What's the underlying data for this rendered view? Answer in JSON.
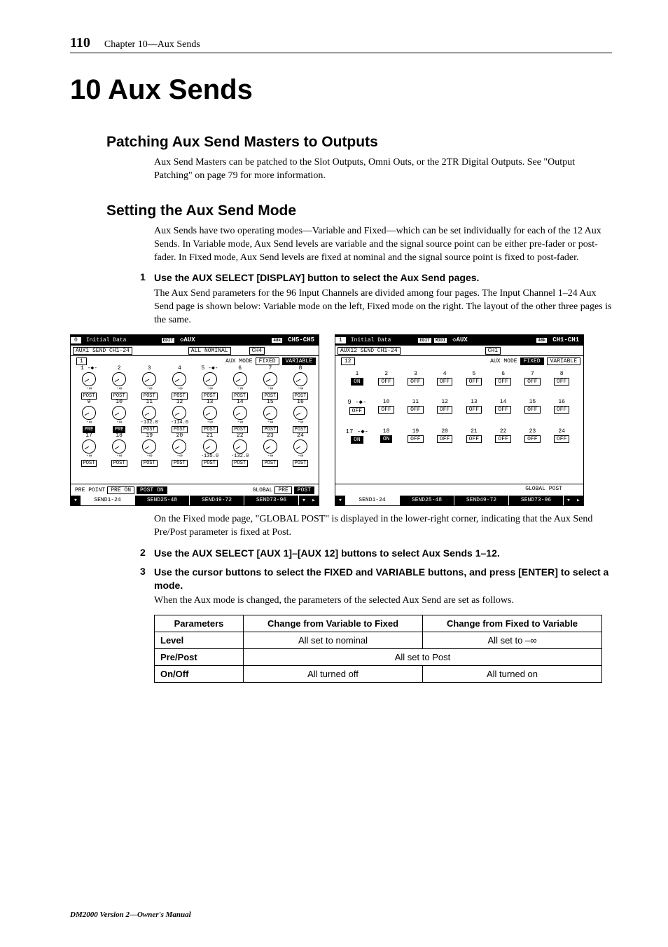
{
  "header": {
    "page_number": "110",
    "chapter_ref": "Chapter 10—Aux Sends"
  },
  "chapter_title": "10  Aux Sends",
  "section1": {
    "title": "Patching Aux Send Masters to Outputs",
    "body": "Aux Send Masters can be patched to the Slot Outputs, Omni Outs, or the 2TR Digital Outputs. See \"Output Patching\" on page 79 for more information."
  },
  "section2": {
    "title": "Setting the Aux Send Mode",
    "body": "Aux Sends have two operating modes—Variable and Fixed—which can be set individually for each of the 12 Aux Sends. In Variable mode, Aux Send levels are variable and the signal source point can be either pre-fader or post-fader. In Fixed mode, Aux Send levels are fixed at nominal and the signal source point is fixed to post-fader."
  },
  "step1": {
    "num": "1",
    "text": "Use the AUX SELECT [DISPLAY] button to select the Aux Send pages."
  },
  "step1_body": "The Aux Send parameters for the 96 Input Channels are divided among four pages. The Input Channel 1–24 Aux Send page is shown below: Variable mode on the left, Fixed mode on the right. The layout of the other three pages is the same.",
  "left_screen": {
    "tb_num": "0",
    "tb_id": "Initial Data",
    "tb_edit": "EDIT",
    "tb_aux": "◇AUX",
    "tb_48": "48k",
    "tb_ch": "CH5-CH5",
    "sub_aux": "AUX1 SEND CH1-24",
    "sub_all": "ALL NOMINAL",
    "sub_ch": "CH4",
    "mode_box": "1",
    "mode_label": "AUX MODE",
    "mode_fixed": "FIXED",
    "mode_var": "VARIABLE",
    "rows": [
      [
        {
          "n": "1",
          "v": "",
          "p": "POST",
          "arrow": "-◆-"
        },
        {
          "n": "2",
          "v": "",
          "p": "POST"
        },
        {
          "n": "3",
          "v": "",
          "p": "POST"
        },
        {
          "n": "4",
          "v": "",
          "p": "POST"
        },
        {
          "n": "5",
          "v": "",
          "p": "POST",
          "arrow": "-◆-"
        },
        {
          "n": "6",
          "v": "",
          "p": "POST"
        },
        {
          "n": "7",
          "v": "",
          "p": "POST"
        },
        {
          "n": "8",
          "v": "",
          "p": "POST"
        }
      ],
      [
        {
          "n": "9",
          "v": "-∞",
          "p": "PRE",
          "inv": true
        },
        {
          "n": "10",
          "v": "-∞",
          "p": "PRE",
          "inv": true
        },
        {
          "n": "11",
          "v": "-132.0",
          "p": "POST"
        },
        {
          "n": "12",
          "v": "-114.0",
          "p": "POST"
        },
        {
          "n": "13",
          "v": "-∞",
          "p": "POST"
        },
        {
          "n": "14",
          "v": "-∞",
          "p": "POST"
        },
        {
          "n": "15",
          "v": "-∞",
          "p": "POST"
        },
        {
          "n": "16",
          "v": "-∞",
          "p": "POST"
        }
      ],
      [
        {
          "n": "17",
          "v": "-∞",
          "p": "POST"
        },
        {
          "n": "18",
          "v": "-∞",
          "p": "POST"
        },
        {
          "n": "19",
          "v": "-∞",
          "p": "POST"
        },
        {
          "n": "20",
          "v": "-∞",
          "p": "POST"
        },
        {
          "n": "21",
          "v": "-135.0",
          "p": "POST"
        },
        {
          "n": "22",
          "v": "-132.0",
          "p": "POST"
        },
        {
          "n": "23",
          "v": "-∞",
          "p": "POST"
        },
        {
          "n": "24",
          "v": "-∞",
          "p": "POST"
        }
      ]
    ],
    "foot_l_label": "PRE POINT",
    "foot_l_preon": "PRE ON",
    "foot_l_poston": "POST ON",
    "foot_r_label": "GLOBAL",
    "foot_r_pre": "PRE",
    "foot_r_post": "POST",
    "tabs": [
      "SEND1-24",
      "SEND25-48",
      "SEND49-72",
      "SEND73-96"
    ]
  },
  "right_screen": {
    "tb_num": "1",
    "tb_id": "Initial Data",
    "tb_edit": "EDIT",
    "tb_midi": "MIDI",
    "tb_aux": "◇AUX",
    "tb_48": "48k",
    "tb_ch": "CH1-CH1",
    "sub_aux": "AUX12 SEND CH1-24",
    "sub_ch": "CH1",
    "mode_box": "12",
    "mode_label": "AUX MODE",
    "mode_fixed": "FIXED",
    "mode_var": "VARIABLE",
    "rows": [
      [
        {
          "n": "1",
          "s": "ON"
        },
        {
          "n": "2",
          "s": "OFF"
        },
        {
          "n": "3",
          "s": "OFF"
        },
        {
          "n": "4",
          "s": "OFF"
        },
        {
          "n": "5",
          "s": "OFF"
        },
        {
          "n": "6",
          "s": "OFF"
        },
        {
          "n": "7",
          "s": "OFF"
        },
        {
          "n": "8",
          "s": "OFF"
        }
      ],
      [
        {
          "n": "9",
          "arrow": "-◆-"
        },
        {
          "n": "10",
          "s": "OFF",
          "merge": true
        },
        {
          "n": "11",
          "s": "OFF"
        },
        {
          "n": "12",
          "s": "OFF"
        },
        {
          "n": "13",
          "s": "OFF"
        },
        {
          "n": "14",
          "s": "OFF"
        },
        {
          "n": "15",
          "s": "OFF"
        },
        {
          "n": "16",
          "s": "OFF"
        }
      ],
      [
        {
          "n": "17",
          "arrow": "-◆-"
        },
        {
          "n": "18",
          "s": "ON",
          "merge": true
        },
        {
          "n": "19",
          "s": "OFF"
        },
        {
          "n": "20",
          "s": "OFF"
        },
        {
          "n": "21",
          "s": "OFF"
        },
        {
          "n": "22",
          "s": "OFF"
        },
        {
          "n": "23",
          "s": "OFF"
        },
        {
          "n": "24",
          "s": "OFF"
        }
      ]
    ],
    "row2_left9": "OFF",
    "row3_left17": "ON",
    "global_post": "GLOBAL POST",
    "tabs": [
      "SEND1-24",
      "SEND25-48",
      "SEND49-72",
      "SEND73-96"
    ]
  },
  "after_screens": "On the Fixed mode page, \"GLOBAL POST\" is displayed in the lower-right corner, indicating that the Aux Send Pre/Post parameter is fixed at Post.",
  "step2": {
    "num": "2",
    "text": "Use the AUX SELECT [AUX 1]–[AUX 12] buttons to select Aux Sends 1–12."
  },
  "step3": {
    "num": "3",
    "text": "Use the cursor buttons to select the FIXED and VARIABLE buttons, and press [ENTER] to select a mode."
  },
  "step3_body": "When the Aux mode is changed, the parameters of the selected Aux Send are set as follows.",
  "table": {
    "headers": [
      "Parameters",
      "Change from Variable to Fixed",
      "Change from Fixed to Variable"
    ],
    "rows": [
      {
        "p": "Level",
        "v2f": "All set to nominal",
        "f2v": "All set to –∞"
      },
      {
        "p": "Pre/Post",
        "span": "All set to Post"
      },
      {
        "p": "On/Off",
        "v2f": "All turned off",
        "f2v": "All turned on"
      }
    ]
  },
  "footer_manual": "DM2000 Version 2—Owner's Manual"
}
